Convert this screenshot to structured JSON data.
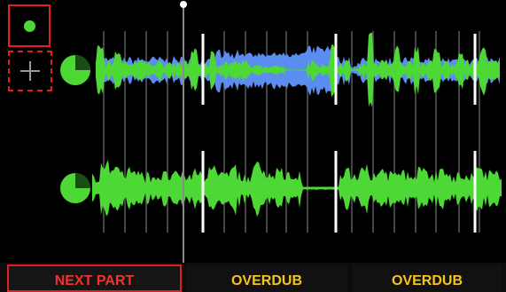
{
  "colors": {
    "background": "#000000",
    "track_green": "#4dd835",
    "overdub_blue": "#5b8cf0",
    "bar_marker": "#ffffff",
    "beat_marker": "#5a5a5a",
    "accent_red": "#e51e26",
    "label_yellow": "#f5c51a"
  },
  "part_slots": [
    {
      "icon": "record-dot-icon",
      "state": "selected"
    },
    {
      "icon": "plus-icon",
      "state": "add"
    }
  ],
  "tracks": [
    {
      "icon": "loop-progress-icon",
      "progress": 0.25,
      "layers": [
        "overdub",
        "base"
      ]
    },
    {
      "icon": "loop-progress-icon",
      "progress": 0.25,
      "layers": [
        "base"
      ]
    }
  ],
  "buttons": {
    "next_part": "NEXT PART",
    "overdub_1": "OVERDUB",
    "overdub_2": "OVERDUB"
  }
}
